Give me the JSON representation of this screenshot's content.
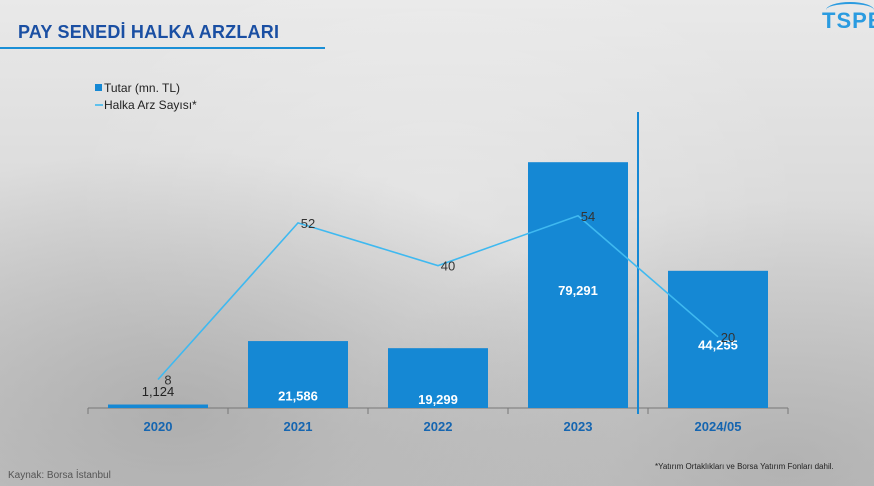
{
  "header": {
    "title": "PAY SENEDİ HALKA ARZLARI",
    "logo_text": "TSPB"
  },
  "footer": {
    "source": "Kaynak: Borsa İstanbul",
    "note": "*Yatırım Ortaklıkları ve Borsa Yatırım Fonları dahil."
  },
  "colors": {
    "bar": "#1588d4",
    "line": "#3fb9f0",
    "title": "#1a4fa3",
    "axis_label": "#1565b0"
  },
  "chart_data": {
    "type": "bar",
    "title": "PAY SENEDİ HALKA ARZLARI",
    "categories": [
      "2020",
      "2021",
      "2022",
      "2023",
      "2024/05"
    ],
    "series": [
      {
        "name": "Tutar (mn. TL)",
        "type": "bar",
        "values": [
          1124,
          21586,
          19299,
          79291,
          44255
        ],
        "labels": [
          "1,124",
          "21,586",
          "19,299",
          "79,291",
          "44,255"
        ]
      },
      {
        "name": "Halka Arz Sayısı*",
        "type": "line",
        "values": [
          8,
          52,
          40,
          54,
          20
        ],
        "labels": [
          "8",
          "52",
          "40",
          "54",
          "20"
        ]
      }
    ],
    "legend": [
      "Tutar (mn. TL)",
      "Halka Arz Sayısı*"
    ],
    "legend_position": "top-left",
    "grid": false,
    "ylim_bar": [
      0,
      100000
    ],
    "ylim_line": [
      0,
      100
    ]
  }
}
